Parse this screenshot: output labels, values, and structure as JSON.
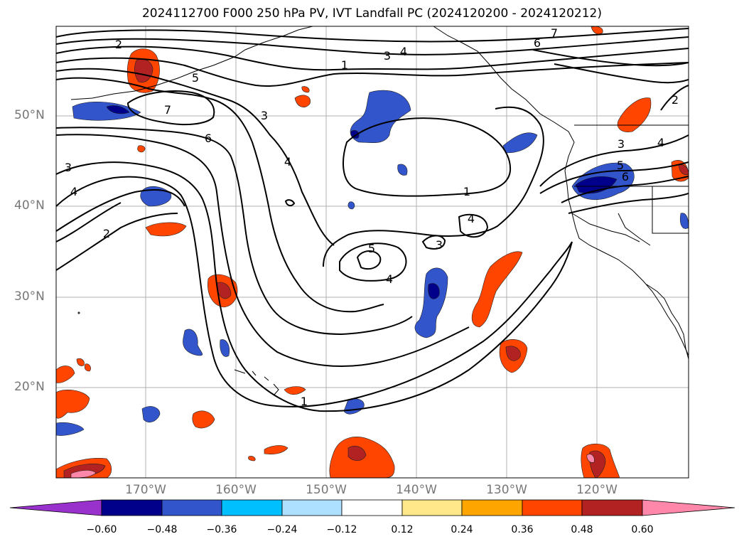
{
  "title": "2024112700 F000 250 hPa PV, IVT Landfall PC (2024120200 - 2024120212)",
  "map": {
    "lat_labels": [
      "50°N",
      "40°N",
      "30°N",
      "20°N"
    ],
    "lon_labels": [
      "170°W",
      "160°W",
      "150°W",
      "140°W",
      "130°W",
      "120°W"
    ],
    "contour_labels": [
      "2",
      "3",
      "4",
      "7",
      "6",
      "5",
      "1",
      "3",
      "4",
      "6",
      "7",
      "3",
      "4",
      "2",
      "1",
      "5",
      "4",
      "3",
      "4",
      "1",
      "5",
      "6",
      "3",
      "4",
      "2"
    ],
    "fill_layer": "IVT Landfall PC",
    "contour_layer": "250 hPa PV"
  },
  "colorbar": {
    "ticks": [
      "−0.60",
      "−0.48",
      "−0.36",
      "−0.24",
      "−0.12",
      "0.12",
      "0.24",
      "0.36",
      "0.48",
      "0.60"
    ],
    "colors": [
      "#9932CC",
      "#00008B",
      "#3355CC",
      "#00BFFF",
      "#ADDFFF",
      "#FFFFFF",
      "#FFE88A",
      "#FFA500",
      "#FF4500",
      "#B22222",
      "#FF88AA"
    ]
  }
}
